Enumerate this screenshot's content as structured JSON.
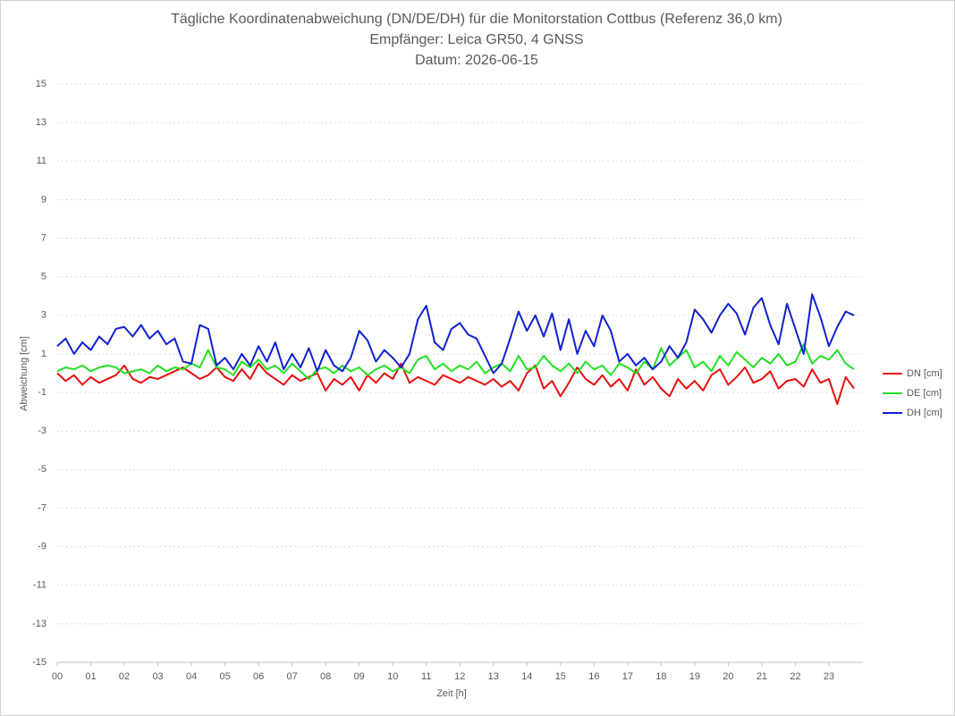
{
  "chart_data": {
    "type": "line",
    "title": "Tägliche Koordinatenabweichung (DN/DE/DH) für die Monitorstation Cottbus (Referenz 36,0 km)",
    "subtitle": "Empfänger: Leica GR50, 4 GNSS",
    "date_label": "Datum: 2026-06-15",
    "x_label": "Zeit [h]",
    "y_label": "Abweichung [cm]",
    "x": [
      0,
      0.25,
      0.5,
      0.75,
      1,
      1.25,
      1.5,
      1.75,
      2,
      2.25,
      2.5,
      2.75,
      3,
      3.25,
      3.5,
      3.75,
      4,
      4.25,
      4.5,
      4.75,
      5,
      5.25,
      5.5,
      5.75,
      6,
      6.25,
      6.5,
      6.75,
      7,
      7.25,
      7.5,
      7.75,
      8,
      8.25,
      8.5,
      8.75,
      9,
      9.25,
      9.5,
      9.75,
      10,
      10.25,
      10.5,
      10.75,
      11,
      11.25,
      11.5,
      11.75,
      12,
      12.25,
      12.5,
      12.75,
      13,
      13.25,
      13.5,
      13.75,
      14,
      14.25,
      14.5,
      14.75,
      15,
      15.25,
      15.5,
      15.75,
      16,
      16.25,
      16.5,
      16.75,
      17,
      17.25,
      17.5,
      17.75,
      18,
      18.25,
      18.5,
      18.75,
      19,
      19.25,
      19.5,
      19.75,
      20,
      20.25,
      20.5,
      20.75,
      21,
      21.25,
      21.5,
      21.75,
      22,
      22.25,
      22.5,
      22.75,
      23,
      23.25,
      23.5,
      23.75
    ],
    "series": [
      {
        "name": "DN [cm]",
        "color": "#e81010",
        "values": [
          0.0,
          -0.4,
          -0.1,
          -0.6,
          -0.2,
          -0.5,
          -0.3,
          -0.1,
          0.4,
          -0.3,
          -0.5,
          -0.2,
          -0.3,
          -0.1,
          0.1,
          0.3,
          0.0,
          -0.3,
          -0.1,
          0.3,
          -0.2,
          -0.4,
          0.2,
          -0.3,
          0.5,
          0.0,
          -0.3,
          -0.6,
          -0.1,
          -0.4,
          -0.2,
          0.0,
          -0.9,
          -0.3,
          -0.6,
          -0.2,
          -0.9,
          -0.1,
          -0.5,
          0.0,
          -0.3,
          0.5,
          -0.5,
          -0.2,
          -0.4,
          -0.6,
          -0.1,
          -0.3,
          -0.5,
          -0.2,
          -0.4,
          -0.6,
          -0.3,
          -0.7,
          -0.4,
          -0.9,
          0.0,
          0.4,
          -0.8,
          -0.4,
          -1.2,
          -0.5,
          0.3,
          -0.3,
          -0.6,
          -0.1,
          -0.7,
          -0.3,
          -0.9,
          0.2,
          -0.6,
          -0.2,
          -0.8,
          -1.2,
          -0.3,
          -0.8,
          -0.4,
          -0.9,
          -0.1,
          0.2,
          -0.6,
          -0.2,
          0.3,
          -0.5,
          -0.3,
          0.1,
          -0.8,
          -0.4,
          -0.3,
          -0.7,
          0.2,
          -0.5,
          -0.3,
          -1.6,
          -0.2,
          -0.8
        ]
      },
      {
        "name": "DE [cm]",
        "color": "#22e022",
        "values": [
          0.1,
          0.3,
          0.2,
          0.4,
          0.1,
          0.3,
          0.4,
          0.3,
          0.0,
          0.1,
          0.2,
          0.0,
          0.4,
          0.1,
          0.3,
          0.2,
          0.5,
          0.3,
          1.2,
          0.3,
          0.2,
          -0.1,
          0.6,
          0.3,
          0.7,
          0.2,
          0.4,
          0.0,
          0.5,
          0.1,
          -0.3,
          0.2,
          0.3,
          0.0,
          0.4,
          0.1,
          0.3,
          -0.1,
          0.2,
          0.4,
          0.1,
          0.3,
          0.0,
          0.7,
          0.9,
          0.2,
          0.5,
          0.1,
          0.4,
          0.2,
          0.6,
          0.0,
          0.3,
          0.5,
          0.1,
          0.9,
          0.2,
          0.3,
          0.9,
          0.4,
          0.1,
          0.5,
          0.0,
          0.6,
          0.2,
          0.4,
          -0.1,
          0.5,
          0.3,
          0.0,
          0.6,
          0.2,
          1.3,
          0.4,
          0.8,
          1.2,
          0.3,
          0.6,
          0.1,
          0.9,
          0.4,
          1.1,
          0.7,
          0.3,
          0.8,
          0.5,
          1.0,
          0.4,
          0.6,
          1.5,
          0.5,
          0.9,
          0.7,
          1.2,
          0.5,
          0.2
        ]
      },
      {
        "name": "DH [cm]",
        "color": "#1020d0",
        "values": [
          1.4,
          1.8,
          1.0,
          1.6,
          1.2,
          1.9,
          1.5,
          2.3,
          2.4,
          1.9,
          2.5,
          1.8,
          2.2,
          1.5,
          1.8,
          0.6,
          0.5,
          2.5,
          2.3,
          0.4,
          0.8,
          0.2,
          1.0,
          0.4,
          1.4,
          0.6,
          1.6,
          0.2,
          1.0,
          0.3,
          1.3,
          0.1,
          1.2,
          0.4,
          0.1,
          0.8,
          2.2,
          1.7,
          0.6,
          1.2,
          0.8,
          0.3,
          1.0,
          2.8,
          3.5,
          1.6,
          1.2,
          2.3,
          2.6,
          2.0,
          1.8,
          0.9,
          0.0,
          0.5,
          1.8,
          3.2,
          2.2,
          3.0,
          1.9,
          3.1,
          1.2,
          2.8,
          1.0,
          2.2,
          1.4,
          3.0,
          2.2,
          0.6,
          1.0,
          0.4,
          0.8,
          0.2,
          0.6,
          1.4,
          0.8,
          1.6,
          3.3,
          2.8,
          2.1,
          3.0,
          3.6,
          3.1,
          2.0,
          3.4,
          3.9,
          2.5,
          1.5,
          3.6,
          2.3,
          1.0,
          4.1,
          2.9,
          1.4,
          2.4,
          3.2,
          3.0
        ]
      }
    ],
    "xlim": [
      0,
      24
    ],
    "xticks": [
      {
        "value": 0,
        "label": "00"
      },
      {
        "value": 1,
        "label": "01"
      },
      {
        "value": 2,
        "label": "02"
      },
      {
        "value": 3,
        "label": "03"
      },
      {
        "value": 4,
        "label": "04"
      },
      {
        "value": 5,
        "label": "05"
      },
      {
        "value": 6,
        "label": "06"
      },
      {
        "value": 7,
        "label": "07"
      },
      {
        "value": 8,
        "label": "08"
      },
      {
        "value": 9,
        "label": "09"
      },
      {
        "value": 10,
        "label": "10"
      },
      {
        "value": 11,
        "label": "11"
      },
      {
        "value": 12,
        "label": "12"
      },
      {
        "value": 13,
        "label": "13"
      },
      {
        "value": 14,
        "label": "14"
      },
      {
        "value": 15,
        "label": "15"
      },
      {
        "value": 16,
        "label": "16"
      },
      {
        "value": 17,
        "label": "17"
      },
      {
        "value": 18,
        "label": "18"
      },
      {
        "value": 19,
        "label": "19"
      },
      {
        "value": 20,
        "label": "20"
      },
      {
        "value": 21,
        "label": "21"
      },
      {
        "value": 22,
        "label": "22"
      },
      {
        "value": 23,
        "label": "23"
      }
    ],
    "ylim": [
      -15,
      15
    ],
    "yticks": [
      -15,
      -13,
      -11,
      -9,
      -7,
      -5,
      -3,
      -1,
      1,
      3,
      5,
      7,
      9,
      11,
      13,
      15
    ],
    "grid": true,
    "legend": "right"
  }
}
